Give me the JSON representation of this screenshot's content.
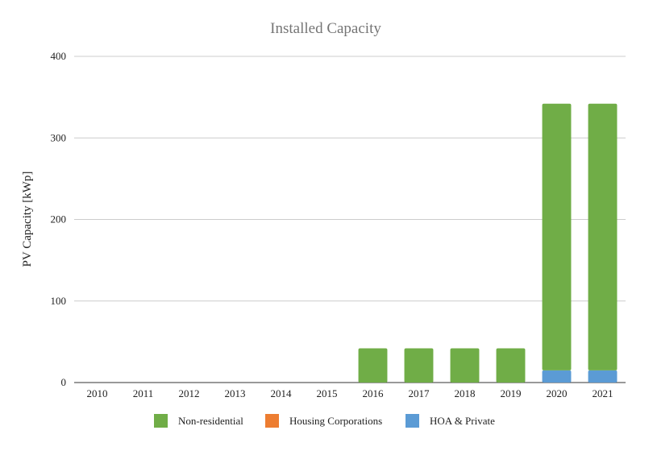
{
  "chart_data": {
    "type": "bar",
    "stacked": true,
    "title": "Installed Capacity",
    "xlabel": "",
    "ylabel": "PV Capacity [kWp]",
    "ylim": [
      0,
      400
    ],
    "yticks": [
      0,
      100,
      200,
      300,
      400
    ],
    "grid": true,
    "legend_position": "bottom",
    "categories": [
      "2010",
      "2011",
      "2012",
      "2013",
      "2014",
      "2015",
      "2016",
      "2017",
      "2018",
      "2019",
      "2020",
      "2021"
    ],
    "series": [
      {
        "name": "HOA & Private",
        "color": "#5b9bd5",
        "values": [
          0,
          0,
          0,
          0,
          0,
          0,
          0,
          0,
          0,
          0,
          15,
          15
        ]
      },
      {
        "name": "Housing Corporations",
        "color": "#ed7d31",
        "values": [
          0,
          0,
          0,
          0,
          0,
          0,
          0,
          0,
          0,
          0,
          0,
          0
        ]
      },
      {
        "name": "Non-residential",
        "color": "#70ad47",
        "values": [
          0,
          0,
          0,
          0,
          0,
          0,
          42,
          42,
          42,
          42,
          327,
          327
        ]
      }
    ],
    "legend_order": [
      "Non-residential",
      "Housing Corporations",
      "HOA & Private"
    ]
  }
}
